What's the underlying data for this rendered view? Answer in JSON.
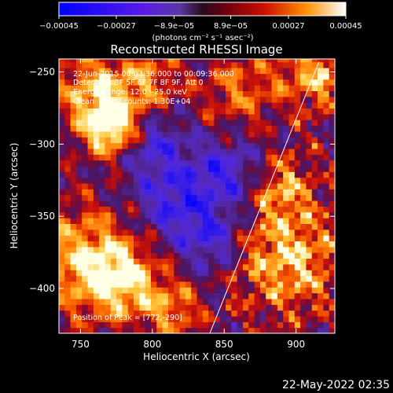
{
  "chart_data": {
    "type": "heatmap",
    "title": "Reconstructed RHESSI Image",
    "xlabel": "Heliocentric X (arcsec)",
    "ylabel": "Heliocentric Y (arcsec)",
    "xlim": [
      735,
      927
    ],
    "ylim": [
      -431,
      -241
    ],
    "x_ticks": [
      750,
      800,
      850,
      900
    ],
    "y_ticks": [
      -250,
      -300,
      -350,
      -400
    ],
    "x_tick_labels": [
      "750",
      "800",
      "850",
      "900"
    ],
    "y_tick_labels": [
      "−250",
      "−300",
      "−350",
      "−400"
    ],
    "colorbar": {
      "range": [
        -0.00045,
        0.00045
      ],
      "ticks": [
        -0.00045,
        -0.00027,
        -8.9e-05,
        8.9e-05,
        0.00027,
        0.00045
      ],
      "tick_labels": [
        "−0.00045",
        "−0.00027",
        "−8.9e−05",
        "8.9e−05",
        "0.00027",
        "0.00045"
      ],
      "unit_label": "(photons cm⁻² s⁻¹ asec⁻²)"
    },
    "annotations": [
      "22-Jun-2015 00:03:36.000 to 00:09:36.000",
      "Detectors: 3F 5F 6F 7F 8F 9F, Att 0",
      "Energy Range: 12.0 - 25.0 keV",
      "Clean    Total counts: 1.30E+04"
    ],
    "peak_label": "Position of Peak = [772,-290]",
    "peak_position": [
      772,
      -290
    ],
    "limb_line": [
      [
        840,
        -431
      ],
      [
        916,
        -243
      ]
    ],
    "hot_regions": [
      {
        "x": 772,
        "y": -288,
        "radius": 14,
        "value": 1.0
      },
      {
        "x": 760,
        "y": -262,
        "radius": 22,
        "value": 0.75
      },
      {
        "x": 752,
        "y": -380,
        "radius": 28,
        "value": 0.8
      },
      {
        "x": 780,
        "y": -395,
        "radius": 18,
        "value": 0.7
      },
      {
        "x": 815,
        "y": -415,
        "radius": 15,
        "value": 0.6
      },
      {
        "x": 912,
        "y": -250,
        "radius": 18,
        "value": 0.7
      },
      {
        "x": 895,
        "y": -380,
        "radius": 25,
        "value": 0.75
      },
      {
        "x": 860,
        "y": -262,
        "radius": 20,
        "value": 0.55
      },
      {
        "x": 890,
        "y": -330,
        "radius": 16,
        "value": 0.55
      },
      {
        "x": 800,
        "y": -255,
        "radius": 15,
        "value": 0.5
      }
    ],
    "cold_regions": [
      {
        "x": 815,
        "y": -340,
        "radius": 18,
        "value": -0.6
      },
      {
        "x": 850,
        "y": -320,
        "radius": 16,
        "value": -0.55
      },
      {
        "x": 800,
        "y": -300,
        "radius": 15,
        "value": -0.5
      },
      {
        "x": 840,
        "y": -365,
        "radius": 14,
        "value": -0.5
      }
    ]
  },
  "footer": {
    "date": "22-May-2022 02:35"
  }
}
